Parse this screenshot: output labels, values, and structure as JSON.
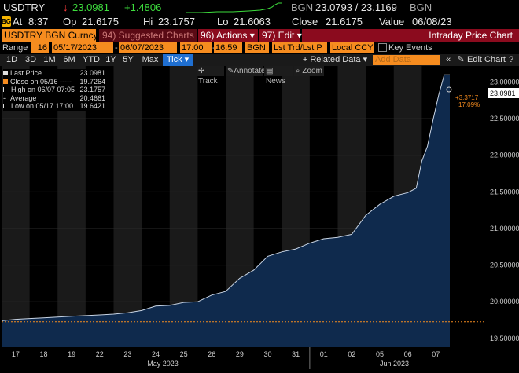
{
  "quote": {
    "ticker": "USDTRY",
    "arrow": "↓",
    "last": "23.0981",
    "change": "+1.4806",
    "source": "BGN",
    "bid_ask": "23.0793 / 23.1169",
    "source2": "BGN",
    "at_label": "At",
    "time": "8:37",
    "op_label": "Op",
    "open": "21.6175",
    "hi_label": "Hi",
    "high": "23.1757",
    "lo_label": "Lo",
    "low": "21.6063",
    "close_label": "Close",
    "close": "21.6175",
    "value_label": "Value",
    "value_date": "06/08/23",
    "badge": "BGN"
  },
  "toolbar": {
    "security": "USDTRY BGN Curncy",
    "suggested": "94) Suggested Charts",
    "actions": "96) Actions ▾",
    "edit": "97) Edit ▾",
    "title": "Intraday Price Chart"
  },
  "range": {
    "label": "Range",
    "days": "16",
    "start": "05/17/2023",
    "dash": "-",
    "end": "06/07/2023",
    "t_start": "17:00",
    "t_dash": "-",
    "t_end": "16:59",
    "src": "BGN",
    "mode": "Lst Trd/Lst P",
    "ccy": "Local CCY",
    "key_events": "Key Events"
  },
  "periods": [
    "1D",
    "3D",
    "1M",
    "6M",
    "YTD",
    "1Y",
    "5Y",
    "Max"
  ],
  "tick_label": "Tick ▾",
  "related": "+ Related Data ▾",
  "add_data_placeholder": "Add Data",
  "edit_chart": "Edit Chart",
  "chart_tools": {
    "track": "Track",
    "annotate": "Annotate",
    "news": "News",
    "zoom": "Zoom"
  },
  "legend": {
    "last_price_label": "Last Price",
    "last_price_value": "23.0981",
    "close_label": "Close on 05/16 -----",
    "close_value": "19.7264",
    "high_label": "High on 06/07 07:05",
    "high_value": "23.1757",
    "avg_label": "Average",
    "avg_value": "20.4661",
    "low_label": "Low on 05/17 17:00",
    "low_value": "19.6421"
  },
  "annotations": {
    "last_tag": "23.0981",
    "chg_abs": "+3.3717",
    "chg_pct": "17.09%"
  },
  "colors": {
    "accent_orange": "#f68c1f",
    "toolbar_red": "#8b0b1e",
    "area_fill": "#0f2a4d",
    "line": "#c8d4e4",
    "tick_blue": "#1f6fd1"
  },
  "chart_data": {
    "type": "area",
    "x_day_labels": [
      "17",
      "18",
      "19",
      "22",
      "23",
      "24",
      "25",
      "26",
      "29",
      "30",
      "31",
      "01",
      "02",
      "05",
      "06",
      "07"
    ],
    "month_labels": [
      "May 2023",
      "Jun 2023"
    ],
    "y_ticks": [
      "19.50000",
      "20.00000",
      "20.50000",
      "21.00000",
      "21.50000",
      "22.00000",
      "22.50000",
      "23.00000"
    ],
    "ylim": [
      19.38,
      23.22
    ],
    "previous_close": 19.7264,
    "series": [
      {
        "name": "Last Price",
        "x": [
          0,
          0.5,
          1,
          1.5,
          2,
          2.5,
          3,
          3.5,
          4,
          4.5,
          5,
          5.5,
          6,
          6.5,
          7,
          7.5,
          8,
          8.5,
          9,
          9.5,
          10,
          10.5,
          11,
          11.5,
          12,
          12.5,
          13,
          13.5,
          14,
          14.5,
          14.8,
          15,
          15.2,
          15.4,
          15.6,
          15.8,
          16
        ],
        "values": [
          19.74,
          19.76,
          19.77,
          19.78,
          19.79,
          19.8,
          19.81,
          19.82,
          19.83,
          19.85,
          19.88,
          19.94,
          19.95,
          19.99,
          20.0,
          20.09,
          20.14,
          20.32,
          20.43,
          20.62,
          20.68,
          20.72,
          20.8,
          20.86,
          20.88,
          20.92,
          21.18,
          21.33,
          21.44,
          21.49,
          21.55,
          21.92,
          22.12,
          22.48,
          22.82,
          23.1,
          23.1
        ]
      }
    ]
  }
}
